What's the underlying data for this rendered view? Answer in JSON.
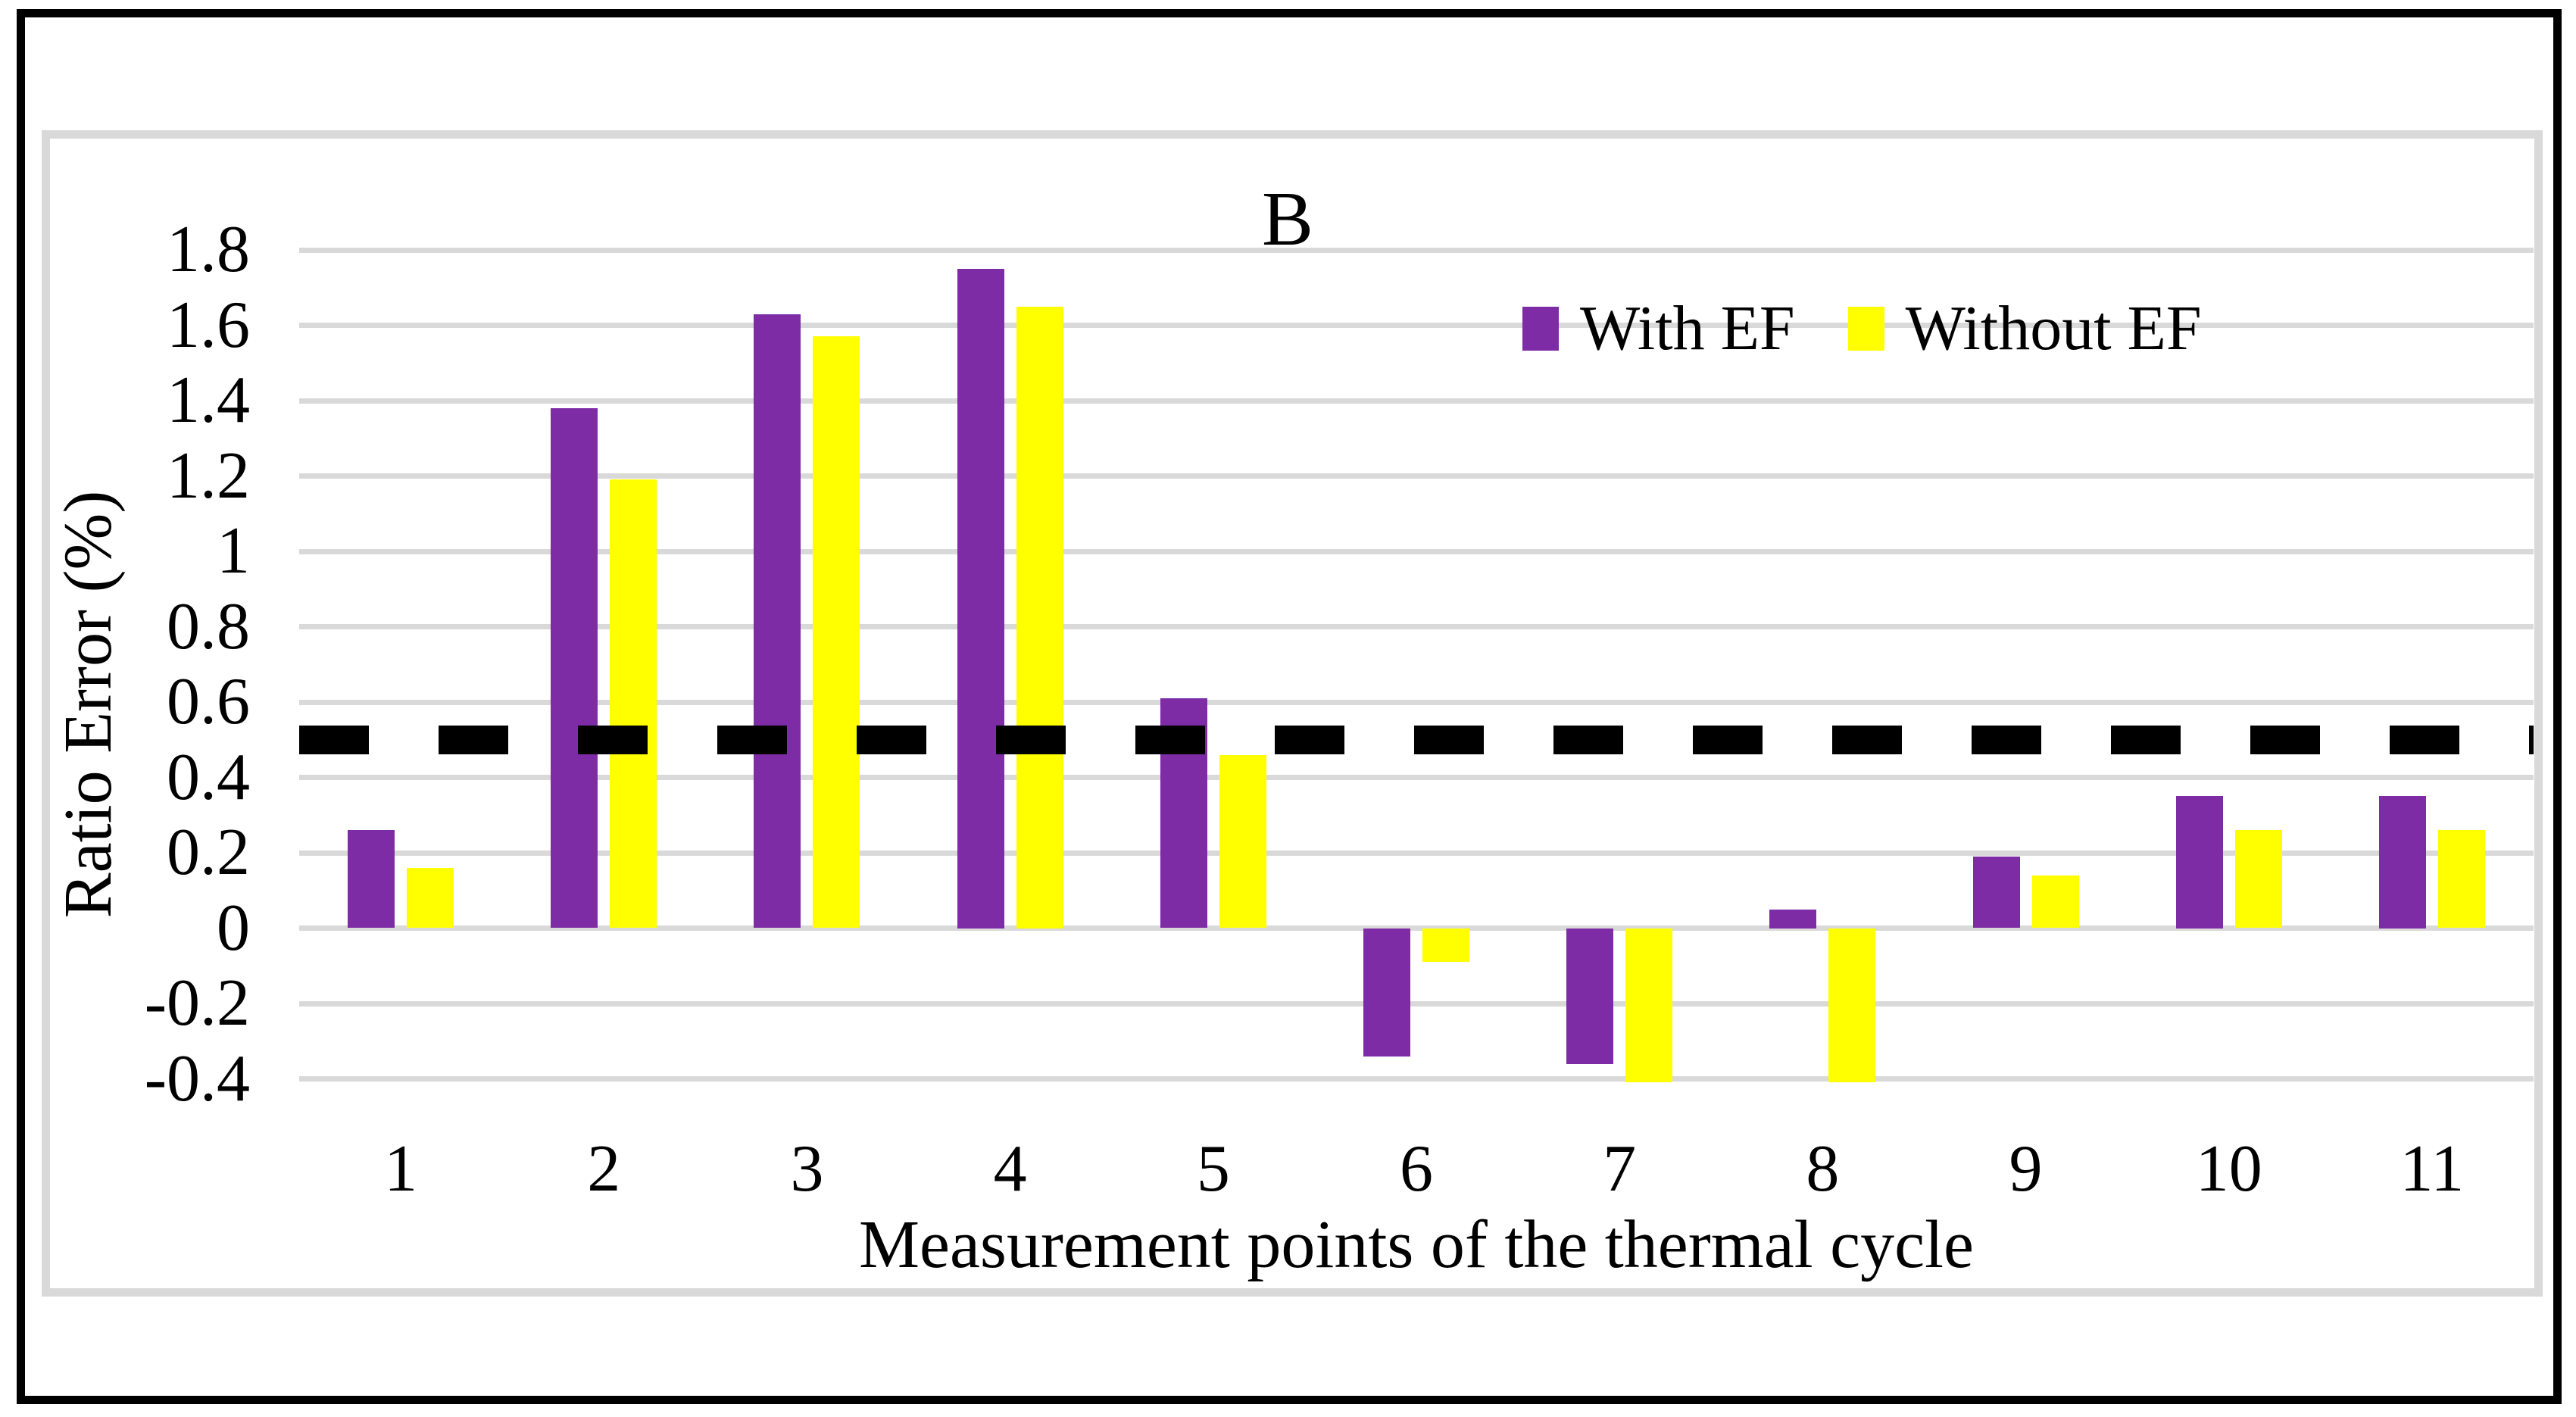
{
  "figure": {
    "title": "B"
  },
  "chart_data": {
    "type": "bar",
    "title": "B",
    "categories": [
      "1",
      "2",
      "3",
      "4",
      "5",
      "6",
      "7",
      "8",
      "9",
      "10",
      "11"
    ],
    "series": [
      {
        "name": "With EF",
        "color": "#7E2CA6",
        "values": [
          0.26,
          1.38,
          1.63,
          1.75,
          0.61,
          -0.34,
          -0.36,
          0.05,
          0.19,
          0.35,
          0.35
        ]
      },
      {
        "name": "Without EF",
        "color": "#FFFF00",
        "values": [
          0.16,
          1.19,
          1.57,
          1.65,
          0.46,
          -0.09,
          -0.41,
          -0.41,
          0.14,
          0.26,
          0.26
        ]
      }
    ],
    "xlabel": "Measurement points of the thermal cycle",
    "ylabel": "Ratio Error (%)",
    "ylim": [
      -0.4,
      1.8
    ],
    "ytick_step": 0.2,
    "ytick_labels": [
      "1.8",
      "1.6",
      "1.4",
      "1.2",
      "1",
      "0.8",
      "0.6",
      "0.4",
      "0.2",
      "0",
      "-0.2",
      "-0.4"
    ],
    "grid": true,
    "legend_position": "top-right-inside",
    "reference_line": {
      "value": 0.5,
      "style": "dashed",
      "color": "#000000"
    }
  },
  "colors": {
    "grid": "#D9D9D9",
    "frame": "#D9D9D9",
    "border": "#000000",
    "background": "#FFFFFF"
  }
}
